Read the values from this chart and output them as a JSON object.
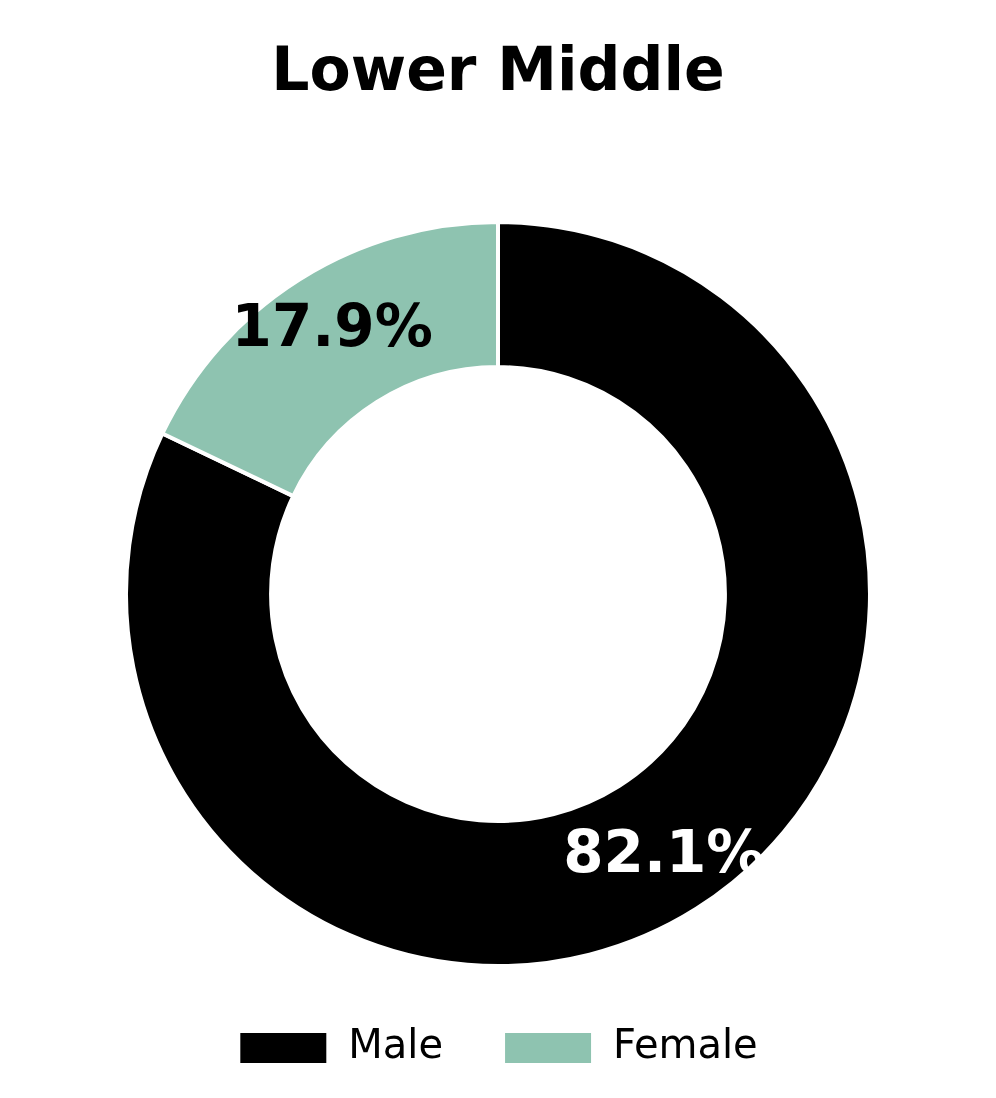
{
  "chart_data": {
    "type": "donut",
    "title": "Lower Middle",
    "categories": [
      "Male",
      "Female"
    ],
    "values": [
      82.1,
      17.9
    ],
    "colors": [
      "#000000",
      "#8ec3b0"
    ],
    "value_labels": [
      "82.1%",
      "17.9%"
    ],
    "legend": "bottom"
  }
}
